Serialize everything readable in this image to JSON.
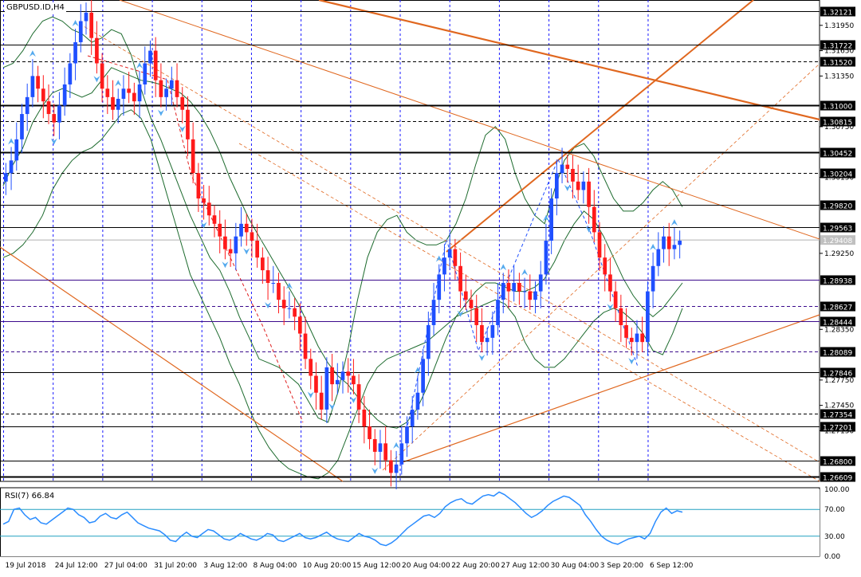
{
  "chart_data": [
    {
      "type": "candlestick",
      "symbol": "GBPUSD.ID,H4",
      "colors": {
        "bull": "#1f4fff",
        "bear": "#ff1a1a",
        "grid": "#1a1aff",
        "hline": "#000000",
        "hline_purple": "#3b0a8c",
        "trend": "#e0671f",
        "bollinger": "#1d6b2e",
        "fractal": "#55aaee",
        "last_price_bg": "#c0c0c0"
      },
      "y_range": [
        1.2655,
        1.3225
      ],
      "y_ticks": [
        "1.31950",
        "1.31650",
        "1.31350",
        "1.30750",
        "1.30150",
        "1.29250",
        "1.28350",
        "1.27750",
        "1.27450",
        "1.27150"
      ],
      "x_tick_labels": [
        "19 Jul 2018",
        "24 Jul 12:00",
        "27 Jul 04:00",
        "31 Jul 20:00",
        "3 Aug 12:00",
        "8 Aug 04:00",
        "10 Aug 20:00",
        "15 Aug 12:00",
        "20 Aug 04:00",
        "22 Aug 20:00",
        "27 Aug 12:00",
        "30 Aug 04:00",
        "3 Sep 20:00",
        "6 Sep 12:00"
      ],
      "price_levels": [
        {
          "label": "1.32121",
          "value": 1.32121,
          "color": "black",
          "style": "solid"
        },
        {
          "label": "1.31722",
          "value": 1.31722,
          "color": "black",
          "style": "solid"
        },
        {
          "label": "1.31520",
          "value": 1.3152,
          "color": "black",
          "style": "dashed"
        },
        {
          "label": "1.31000",
          "value": 1.31,
          "color": "black",
          "style": "thick"
        },
        {
          "label": "1.30815",
          "value": 1.30815,
          "color": "black",
          "style": "dashed"
        },
        {
          "label": "1.30452",
          "value": 1.30452,
          "color": "black",
          "style": "thick"
        },
        {
          "label": "1.30204",
          "value": 1.30204,
          "color": "black",
          "style": "dashed"
        },
        {
          "label": "1.29820",
          "value": 1.2982,
          "color": "black",
          "style": "solid"
        },
        {
          "label": "1.29563",
          "value": 1.29563,
          "color": "black",
          "style": "solid"
        },
        {
          "label": "1.28938",
          "value": 1.28938,
          "color": "purple",
          "style": "solid"
        },
        {
          "label": "1.28627",
          "value": 1.28627,
          "color": "purple",
          "style": "dashed"
        },
        {
          "label": "1.28444",
          "value": 1.28444,
          "color": "purple",
          "style": "solid"
        },
        {
          "label": "1.28089",
          "value": 1.28089,
          "color": "purple",
          "style": "dashed"
        },
        {
          "label": "1.27846",
          "value": 1.27846,
          "color": "black",
          "style": "solid"
        },
        {
          "label": "1.27354",
          "value": 1.27354,
          "color": "black",
          "style": "dashed"
        },
        {
          "label": "1.27201",
          "value": 1.27201,
          "color": "black",
          "style": "solid"
        },
        {
          "label": "1.26800",
          "value": 1.268,
          "color": "black",
          "style": "solid"
        },
        {
          "label": "1.26609",
          "value": 1.26609,
          "color": "black",
          "style": "thick"
        }
      ],
      "last_price": {
        "label": "1.29408",
        "value": 1.29408
      },
      "closes": [
        1.302,
        1.3035,
        1.306,
        1.309,
        1.311,
        1.3135,
        1.312,
        1.3105,
        1.309,
        1.308,
        1.31,
        1.3125,
        1.315,
        1.3175,
        1.32,
        1.321,
        1.318,
        1.315,
        1.312,
        1.311,
        1.3095,
        1.3108,
        1.312,
        1.3115,
        1.3105,
        1.3125,
        1.315,
        1.3165,
        1.313,
        1.311,
        1.312,
        1.313,
        1.311,
        1.3095,
        1.306,
        1.302,
        1.299,
        1.2985,
        1.297,
        1.296,
        1.2945,
        1.293,
        1.2925,
        1.2945,
        1.296,
        1.295,
        1.294,
        1.292,
        1.2905,
        1.289,
        1.289,
        1.287,
        1.286,
        1.286,
        1.285,
        1.283,
        1.28,
        1.278,
        1.276,
        1.274,
        1.279,
        1.277,
        1.2775,
        1.2785,
        1.278,
        1.277,
        1.274,
        1.272,
        1.2705,
        1.269,
        1.27,
        1.268,
        1.2665,
        1.2675,
        1.27,
        1.272,
        1.274,
        1.276,
        1.28,
        1.284,
        1.287,
        1.29,
        1.292,
        1.293,
        1.291,
        1.288,
        1.287,
        1.286,
        1.284,
        1.282,
        1.2825,
        1.284,
        1.287,
        1.289,
        1.288,
        1.289,
        1.288,
        1.288,
        1.287,
        1.288,
        1.29,
        1.294,
        1.299,
        1.302,
        1.303,
        1.3025,
        1.301,
        1.3,
        1.301,
        1.298,
        1.295,
        1.292,
        1.29,
        1.288,
        1.286,
        1.284,
        1.2825,
        1.282,
        1.283,
        1.282,
        1.288,
        1.291,
        1.293,
        1.2945,
        1.293,
        1.2935,
        1.294
      ],
      "bb_middle": [
        1.3005,
        1.303,
        1.305,
        1.308,
        1.31,
        1.3115,
        1.312,
        1.3115,
        1.311,
        1.3115,
        1.313,
        1.3145,
        1.314,
        1.3135,
        1.313,
        1.3128,
        1.3125,
        1.312,
        1.3115,
        1.3105,
        1.309,
        1.307,
        1.3045,
        1.3015,
        1.299,
        1.2965,
        1.2945,
        1.2925,
        1.2905,
        1.2885,
        1.2865,
        1.284,
        1.2815,
        1.2795,
        1.278,
        1.277,
        1.2755,
        1.274,
        1.2728,
        1.272,
        1.2718,
        1.2725,
        1.274,
        1.2765,
        1.2795,
        1.2825,
        1.285,
        1.2865,
        1.288,
        1.289,
        1.289,
        1.2885,
        1.288,
        1.288,
        1.2885,
        1.2895,
        1.2915,
        1.294,
        1.296,
        1.2975,
        1.2965,
        1.2945,
        1.292,
        1.2895,
        1.2875,
        1.286,
        1.285,
        1.286,
        1.2875,
        1.289
      ],
      "bb_upper": [
        1.3145,
        1.315,
        1.3165,
        1.3185,
        1.32,
        1.3205,
        1.32,
        1.319,
        1.3185,
        1.3175,
        1.318,
        1.319,
        1.3185,
        1.316,
        1.312,
        1.3085,
        1.306,
        1.303,
        1.3,
        1.297,
        1.2945,
        1.292,
        1.2905,
        1.288,
        1.285,
        1.2825,
        1.28,
        1.2795,
        1.279,
        1.278,
        1.277,
        1.275,
        1.273,
        1.2725,
        1.276,
        1.281,
        1.287,
        1.292,
        1.295,
        1.2965,
        1.297,
        1.295,
        1.294,
        1.2935,
        1.2935,
        1.294,
        1.296,
        1.299,
        1.303,
        1.3065,
        1.3075,
        1.306,
        1.302,
        1.299,
        1.297,
        1.296,
        1.3,
        1.3035,
        1.305,
        1.3055,
        1.304,
        1.3015,
        1.299,
        1.2975,
        1.2975,
        1.2985,
        1.3,
        1.301,
        1.3,
        1.298
      ],
      "bb_lower": [
        1.292,
        1.2925,
        1.2935,
        1.295,
        1.297,
        1.3,
        1.302,
        1.3035,
        1.3045,
        1.305,
        1.306,
        1.3075,
        1.309,
        1.3095,
        1.3085,
        1.306,
        1.302,
        1.298,
        1.294,
        1.29,
        1.2875,
        1.285,
        1.2825,
        1.2795,
        1.277,
        1.274,
        1.2715,
        1.2695,
        1.268,
        1.267,
        1.2665,
        1.266,
        1.2658,
        1.2665,
        1.268,
        1.271,
        1.274,
        1.277,
        1.279,
        1.28,
        1.2805,
        1.281,
        1.2815,
        1.282,
        1.283,
        1.284,
        1.285,
        1.2855,
        1.286,
        1.2865,
        1.287,
        1.2865,
        1.285,
        1.282,
        1.28,
        1.279,
        1.279,
        1.28,
        1.2815,
        1.283,
        1.2845,
        1.2855,
        1.286,
        1.2855,
        1.2845,
        1.283,
        1.281,
        1.2805,
        1.283,
        1.286
      ]
    },
    {
      "type": "line",
      "name": "RSI(7) 66.84",
      "y_range": [
        0,
        100
      ],
      "y_ticks": [
        "100.00",
        "70.00",
        "30.00",
        "0.00"
      ],
      "levels": [
        70,
        30
      ],
      "values": [
        48,
        52,
        70,
        72,
        62,
        55,
        58,
        50,
        48,
        54,
        60,
        66,
        72,
        70,
        62,
        58,
        50,
        52,
        60,
        64,
        58,
        56,
        62,
        66,
        58,
        50,
        46,
        42,
        40,
        38,
        32,
        24,
        22,
        30,
        36,
        30,
        28,
        34,
        40,
        38,
        32,
        26,
        24,
        28,
        34,
        30,
        26,
        24,
        28,
        34,
        32,
        24,
        22,
        26,
        30,
        34,
        28,
        26,
        28,
        32,
        36,
        30,
        26,
        24,
        22,
        28,
        34,
        30,
        28,
        24,
        18,
        16,
        20,
        26,
        34,
        42,
        48,
        54,
        60,
        62,
        58,
        64,
        74,
        80,
        84,
        86,
        80,
        78,
        84,
        90,
        92,
        90,
        96,
        92,
        86,
        80,
        72,
        64,
        58,
        62,
        68,
        76,
        82,
        86,
        90,
        88,
        82,
        76,
        62,
        52,
        40,
        30,
        24,
        20,
        18,
        22,
        26,
        28,
        30,
        26,
        34,
        52,
        66,
        72,
        64,
        68,
        66
      ]
    }
  ]
}
